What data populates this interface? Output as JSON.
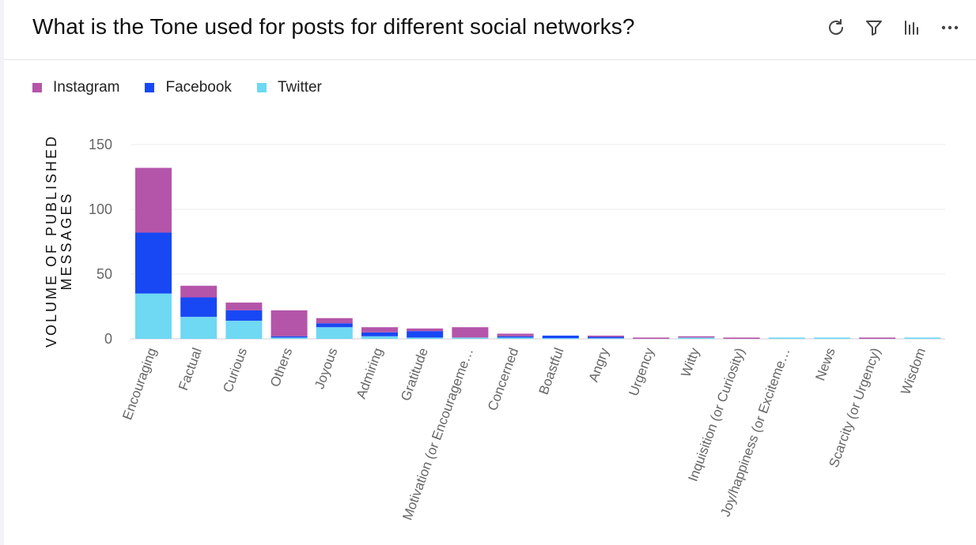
{
  "header": {
    "title": "What is the Tone used for posts for different social networks?"
  },
  "toolbar": {
    "icons": [
      "refresh-icon",
      "filter-icon",
      "chart-type-icon",
      "more-icon"
    ]
  },
  "colors": {
    "instagram": "#b455aa",
    "facebook": "#1848f4",
    "twitter": "#6fd8f2"
  },
  "legend": [
    {
      "name": "Instagram",
      "color": "#b455aa"
    },
    {
      "name": "Facebook",
      "color": "#1848f4"
    },
    {
      "name": "Twitter",
      "color": "#6fd8f2"
    }
  ],
  "chart_data": {
    "type": "bar",
    "stacked": true,
    "ylabel": "VOLUME OF PUBLISHED MESSAGES",
    "xlabel": "",
    "ylim": [
      0,
      150
    ],
    "yticks": [
      0,
      50,
      100,
      150
    ],
    "grid": true,
    "legend_position": "top-left",
    "categories": [
      "Encouraging",
      "Factual",
      "Curious",
      "Others",
      "Joyous",
      "Admiring",
      "Gratitude",
      "Motivation (or Encourageme…",
      "Concerned",
      "Boastful",
      "Angry",
      "Urgency",
      "Witty",
      "Inquisition (or Curiosity)",
      "Joy/happiness (or Exciteme…",
      "News",
      "Scarcity (or Urgency)",
      "Wisdom"
    ],
    "series": [
      {
        "name": "Twitter",
        "color": "#6fd8f2",
        "values": [
          35,
          17,
          14,
          1,
          9,
          2,
          1,
          1,
          1,
          0.5,
          0.5,
          0,
          1,
          0,
          1,
          1,
          0,
          1
        ]
      },
      {
        "name": "Facebook",
        "color": "#1848f4",
        "values": [
          47,
          15,
          8,
          1,
          3,
          3,
          5,
          0,
          1,
          2,
          1,
          0,
          0,
          0,
          0,
          0,
          0,
          0
        ]
      },
      {
        "name": "Instagram",
        "color": "#b455aa",
        "values": [
          50,
          9,
          6,
          20,
          4,
          4,
          2,
          8,
          2,
          0,
          1,
          1,
          1,
          1,
          0,
          0,
          1,
          0
        ]
      }
    ]
  }
}
